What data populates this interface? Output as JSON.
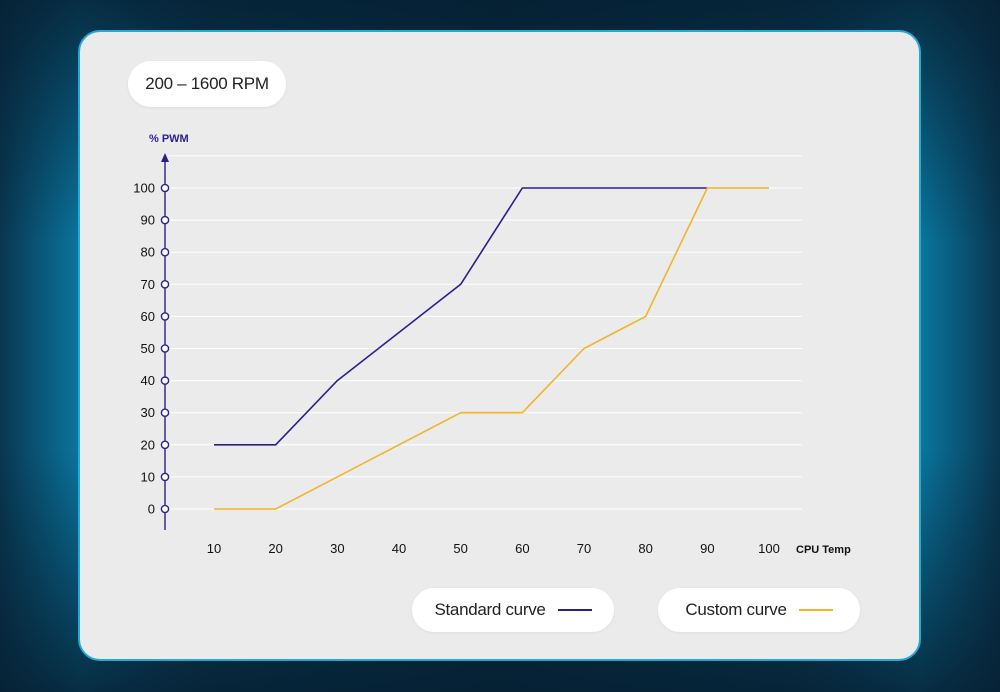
{
  "range_label": "200 – 1600 RPM",
  "colors": {
    "axis": "#2a1f8f",
    "standard": "#2a1f8f",
    "custom": "#f2b52a",
    "card_border": "#22a9d6"
  },
  "chart_data": {
    "type": "line",
    "ylabel": "% PWM",
    "xlabel": "CPU Temp",
    "x_ticks": [
      10,
      20,
      30,
      40,
      50,
      60,
      70,
      80,
      90,
      100
    ],
    "y_ticks": [
      0,
      10,
      20,
      30,
      40,
      50,
      60,
      70,
      80,
      90,
      100
    ],
    "xlim": [
      10,
      100
    ],
    "ylim": [
      0,
      100
    ],
    "grid": true,
    "legend_position": "bottom",
    "series": [
      {
        "name": "Standard curve",
        "color": "#2a1f8f",
        "points": [
          [
            10,
            20
          ],
          [
            20,
            20
          ],
          [
            30,
            40
          ],
          [
            50,
            70
          ],
          [
            60,
            100
          ],
          [
            90,
            100
          ]
        ]
      },
      {
        "name": "Custom curve",
        "color": "#f2b52a",
        "points": [
          [
            10,
            0
          ],
          [
            20,
            0
          ],
          [
            30,
            10
          ],
          [
            50,
            30
          ],
          [
            60,
            30
          ],
          [
            70,
            50
          ],
          [
            80,
            60
          ],
          [
            90,
            100
          ],
          [
            100,
            100
          ]
        ]
      }
    ]
  }
}
